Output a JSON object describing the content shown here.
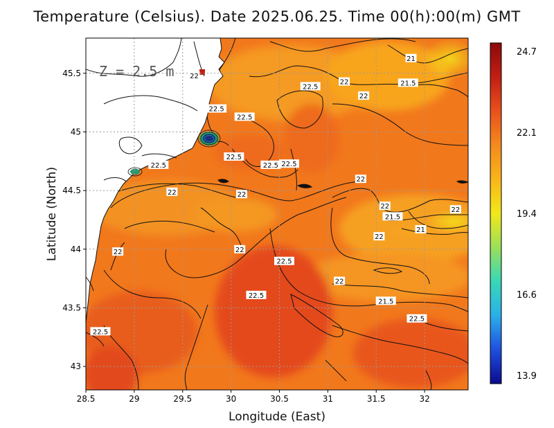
{
  "title": "Temperature (Celsius). Date 2025.06.25. Time 00(h):00(m) GMT",
  "depth_label": "Z = 2.5 m",
  "x_axis": {
    "label": "Longitude (East)",
    "ticks": [
      "28.5",
      "29",
      "29.5",
      "30",
      "30.5",
      "31",
      "31.5",
      "32"
    ],
    "values": [
      28.5,
      29,
      29.5,
      30,
      30.5,
      31,
      31.5,
      32
    ],
    "range": [
      28.5,
      32.45
    ]
  },
  "y_axis": {
    "label": "Latitude (North)",
    "ticks": [
      "43",
      "43.5",
      "44",
      "44.5",
      "45",
      "45.5"
    ],
    "values": [
      43,
      43.5,
      44,
      44.5,
      45,
      45.5
    ],
    "range": [
      42.8,
      45.8
    ]
  },
  "colorbar": {
    "ticks": [
      "24.7",
      "22.1",
      "19.4",
      "16.6",
      "13.9"
    ],
    "min": 13.9,
    "max": 24.7,
    "colors": [
      "#0b0b8c",
      "#1f4fe0",
      "#2ab0e8",
      "#38d8b8",
      "#9be05a",
      "#f2e81a",
      "#f9b51a",
      "#f48a1e",
      "#e8521c",
      "#c21e14",
      "#8c0a0a"
    ]
  },
  "contour_labels": [
    {
      "text": "21",
      "lon": 31.86,
      "lat": 45.63
    },
    {
      "text": "22",
      "lon": 29.62,
      "lat": 45.48
    },
    {
      "text": "22",
      "lon": 31.17,
      "lat": 45.43
    },
    {
      "text": "21.5",
      "lon": 31.83,
      "lat": 45.42
    },
    {
      "text": "22.5",
      "lon": 30.82,
      "lat": 45.39
    },
    {
      "text": "22",
      "lon": 31.37,
      "lat": 45.31
    },
    {
      "text": "22.5",
      "lon": 29.85,
      "lat": 45.2
    },
    {
      "text": "22.5",
      "lon": 30.14,
      "lat": 45.13
    },
    {
      "text": "22.5",
      "lon": 30.03,
      "lat": 44.79
    },
    {
      "text": "22.5",
      "lon": 29.25,
      "lat": 44.72
    },
    {
      "text": "22.5",
      "lon": 30.41,
      "lat": 44.72
    },
    {
      "text": "22.5",
      "lon": 30.6,
      "lat": 44.73
    },
    {
      "text": "22",
      "lon": 31.34,
      "lat": 44.6
    },
    {
      "text": "22",
      "lon": 29.39,
      "lat": 44.49
    },
    {
      "text": "22",
      "lon": 30.11,
      "lat": 44.47
    },
    {
      "text": "22",
      "lon": 31.59,
      "lat": 44.37
    },
    {
      "text": "22",
      "lon": 32.32,
      "lat": 44.34
    },
    {
      "text": "21.5",
      "lon": 31.67,
      "lat": 44.28
    },
    {
      "text": "21",
      "lon": 31.96,
      "lat": 44.17
    },
    {
      "text": "22",
      "lon": 31.53,
      "lat": 44.11
    },
    {
      "text": "22",
      "lon": 28.83,
      "lat": 43.98
    },
    {
      "text": "22",
      "lon": 30.09,
      "lat": 44.0
    },
    {
      "text": "22.5",
      "lon": 30.55,
      "lat": 43.9
    },
    {
      "text": "22",
      "lon": 31.12,
      "lat": 43.73
    },
    {
      "text": "22.5",
      "lon": 30.26,
      "lat": 43.61
    },
    {
      "text": "21.5",
      "lon": 31.6,
      "lat": 43.56
    },
    {
      "text": "22.5",
      "lon": 31.92,
      "lat": 43.41
    },
    {
      "text": "22.5",
      "lon": 28.65,
      "lat": 43.3
    }
  ]
}
